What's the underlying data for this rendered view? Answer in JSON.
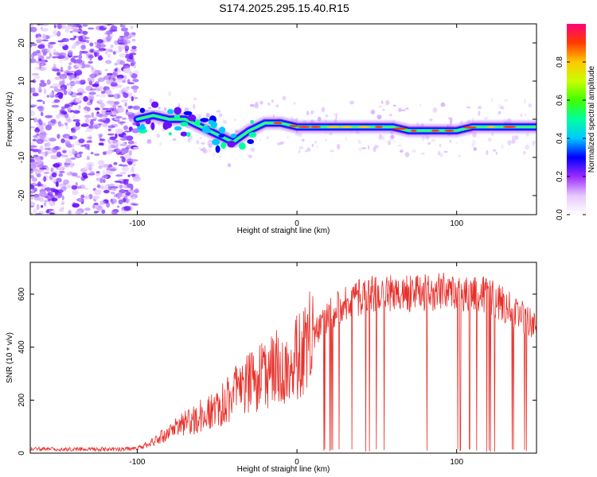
{
  "title": "S174.2025.295.15.40.R15",
  "chart_data": [
    {
      "type": "heatmap",
      "title": "S174.2025.295.15.40.R15",
      "xlabel": "Height of straight line (km)",
      "ylabel": "Frequency (Hz)",
      "xlim": [
        -167,
        150
      ],
      "ylim": [
        -25,
        25
      ],
      "xticks": [
        -100,
        0,
        100
      ],
      "yticks": [
        -20,
        -10,
        0,
        10,
        20
      ],
      "colorbar": {
        "label": "Normalized spectral amplitude",
        "range": [
          0,
          1
        ],
        "ticks": [
          "0.0",
          "0.2",
          "0.4",
          "0.6",
          "0.8"
        ]
      },
      "ridge": {
        "x": [
          -100,
          -90,
          -80,
          -70,
          -60,
          -50,
          -40,
          -30,
          -20,
          -10,
          0,
          10,
          20,
          30,
          40,
          50,
          60,
          70,
          80,
          90,
          100,
          110,
          120,
          130,
          140,
          150
        ],
        "y": [
          0,
          1,
          0,
          0,
          -2,
          -4,
          -6,
          -3,
          -1,
          -1,
          -2,
          -2,
          -2,
          -2,
          -2,
          -2,
          -2,
          -3,
          -3,
          -3,
          -3,
          -2,
          -2,
          -2,
          -2,
          -2
        ]
      }
    },
    {
      "type": "line",
      "xlabel": "Height of straight line (km)",
      "ylabel": "SNR (10 * v/v)",
      "xlim": [
        -167,
        150
      ],
      "ylim": [
        0,
        720
      ],
      "xticks": [
        -100,
        0,
        100
      ],
      "yticks": [
        0,
        200,
        400,
        600
      ],
      "color": "#e8302a",
      "envelope": {
        "x": [
          -167,
          -110,
          -100,
          -90,
          -80,
          -70,
          -60,
          -50,
          -40,
          -30,
          -20,
          -10,
          0,
          10,
          20,
          30,
          40,
          50,
          60,
          70,
          80,
          90,
          100,
          110,
          115,
          120,
          130,
          140,
          150
        ],
        "y": [
          15,
          15,
          20,
          40,
          80,
          110,
          140,
          170,
          220,
          260,
          300,
          330,
          360,
          440,
          520,
          570,
          590,
          600,
          600,
          600,
          610,
          610,
          600,
          590,
          610,
          590,
          560,
          520,
          470
        ]
      }
    }
  ]
}
